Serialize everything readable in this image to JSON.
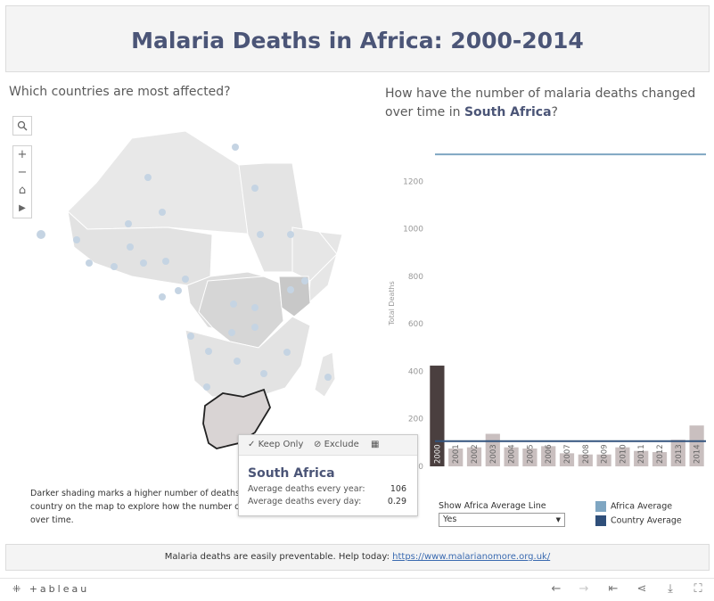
{
  "title": "Malaria Deaths in Africa: 2000-2014",
  "map_panel": {
    "question": "Which countries are most affected?",
    "search_icon": "magnifier-icon",
    "controls": [
      "+",
      "−",
      "⌂",
      "▶"
    ],
    "description": "Darker shading marks a higher number of deaths. Click a country on the map to explore how the number of deaths changed over time.",
    "description_visible": [
      "Darker shading marks a higher number of deaths",
      "country on the map to explore how the number o",
      "over time."
    ]
  },
  "tooltip": {
    "keep_only": "Keep Only",
    "exclude": "Exclude",
    "country": "South Africa",
    "rows": [
      {
        "label": "Average deaths every year:",
        "value": "106"
      },
      {
        "label": "Average deaths every day:",
        "value": "0.29"
      }
    ]
  },
  "chart_panel": {
    "question_prefix": "How have the number of malaria deaths changed over time in ",
    "question_country": "South Africa",
    "question_suffix": "?"
  },
  "chart_data": {
    "type": "bar",
    "title": "",
    "ylabel": "Total Deaths",
    "ylim": [
      0,
      1400
    ],
    "yticks": [
      0,
      200,
      400,
      600,
      800,
      1000,
      1200
    ],
    "categories": [
      "2000",
      "2001",
      "2002",
      "2003",
      "2004",
      "2005",
      "2006",
      "2007",
      "2008",
      "2009",
      "2010",
      "2011",
      "2012",
      "2013",
      "2014"
    ],
    "values": [
      424,
      75,
      80,
      137,
      80,
      75,
      85,
      55,
      50,
      50,
      80,
      65,
      60,
      112,
      172
    ],
    "highlighted_category": "2000",
    "reference_lines": [
      {
        "name": "Africa Average",
        "value": 1313,
        "color": "#7fa6c2"
      },
      {
        "name": "Country Average",
        "value": 106,
        "color": "#33547e"
      }
    ]
  },
  "average_control": {
    "label": "Show Africa Average Line",
    "selected": "Yes"
  },
  "legend": [
    {
      "label": "Africa Average",
      "color": "#7fa6c2"
    },
    {
      "label": "Country Average",
      "color": "#2f4f7a"
    }
  ],
  "footer": {
    "text": "Malaria deaths are easily preventable. Help today: ",
    "link": "https://www.malarianomore.org.uk/"
  },
  "toolbar": {
    "logo": "+ableau",
    "icons": [
      "undo-icon",
      "redo-icon",
      "revert-icon",
      "share-icon",
      "download-icon",
      "fullscreen-icon"
    ]
  }
}
